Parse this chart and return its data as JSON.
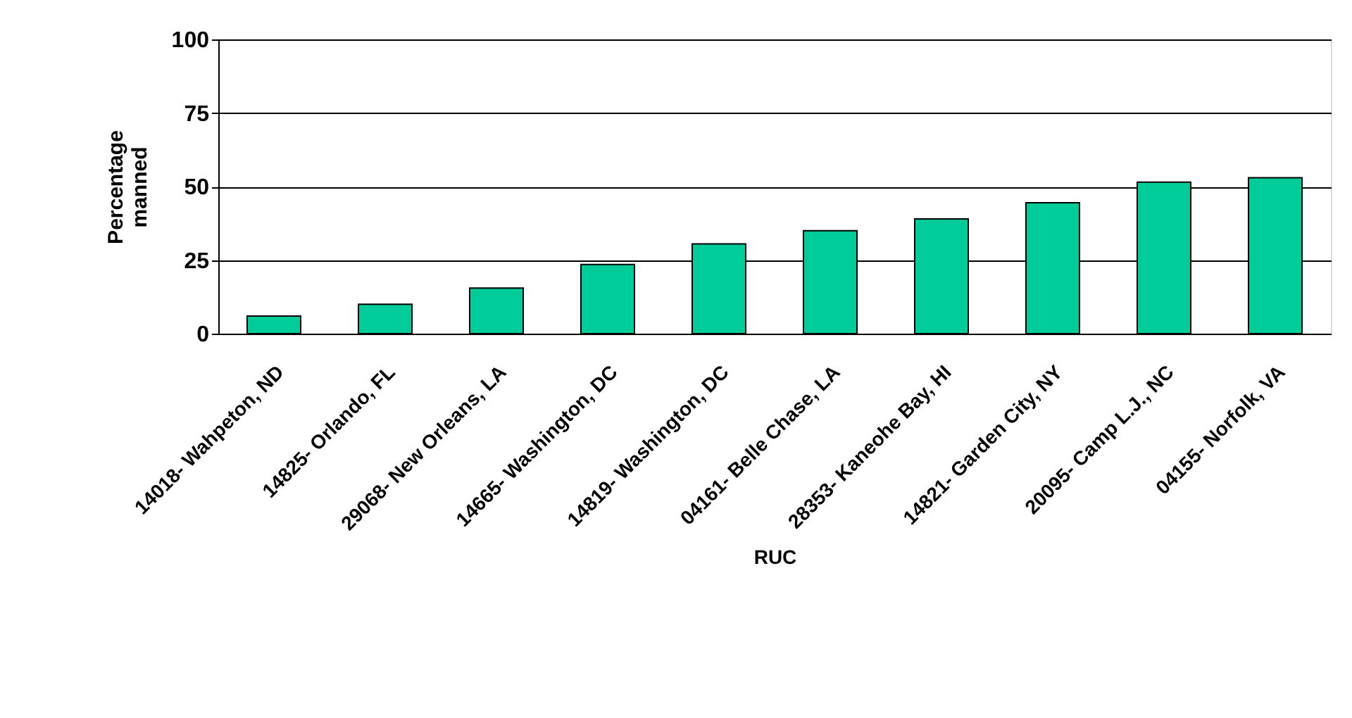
{
  "chart_data": {
    "type": "bar",
    "xlabel": "RUC",
    "ylabel": "Percentage manned",
    "categories": [
      "14018- Wahpeton, ND",
      "14825- Orlando, FL",
      "29068- New Orleans, LA",
      "14665- Washington, DC",
      "14819- Washington, DC",
      "04161- Belle Chase, LA",
      "28353- Kaneohe Bay, HI",
      "14821- Garden City, NY",
      "20095- Camp L.J., NC",
      "04155- Norfolk, VA"
    ],
    "values": [
      6,
      10,
      15.5,
      23.5,
      30.5,
      35,
      39,
      44.5,
      51.5,
      53
    ],
    "color": "#00cc99",
    "ylim": [
      0,
      100
    ],
    "yticks": [
      0,
      25,
      50,
      75,
      100
    ],
    "grid": "y"
  }
}
